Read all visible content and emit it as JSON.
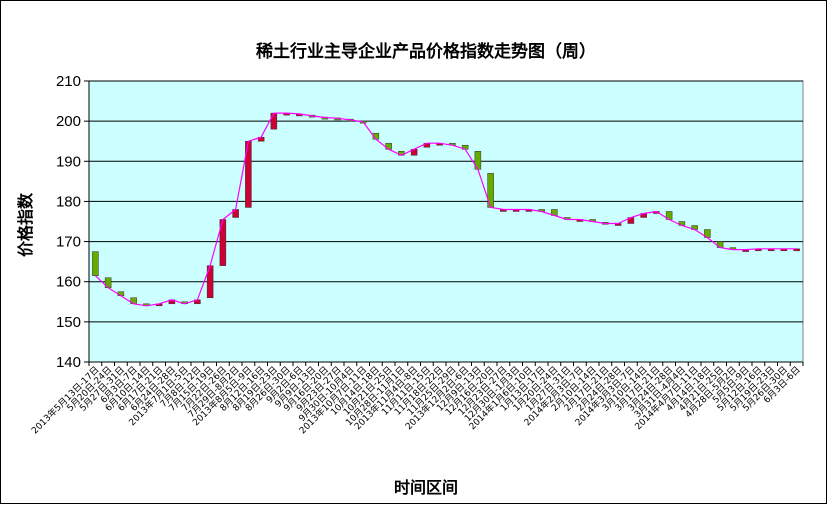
{
  "chart_data": {
    "type": "candlestick-line",
    "title": "稀土行业主导企业产品价格指数走势图（周）",
    "xlabel": "时间区间",
    "ylabel": "价格指数",
    "ylim": [
      140,
      210
    ],
    "yticks": [
      "140",
      "150",
      "160",
      "170",
      "180",
      "190",
      "200",
      "210"
    ],
    "grid": true,
    "plot_background": "#ccffff",
    "line_color": "#ff00ff",
    "up_color": "#cc0033",
    "down_color": "#66aa00",
    "categories": [
      "2013年5月13日-17日",
      "5月20日-24日",
      "5月27日-31日",
      "6月3日-7日",
      "6月10日-14日",
      "6月17日-21日",
      "6月24日-28日",
      "2013年7月1日-5日",
      "7月8日-12日",
      "7月15日-19日",
      "7月22日-26日",
      "7月29日-8月2日",
      "2013年8月5日-9日",
      "8月12日-16日",
      "8月19日-23日",
      "8月26日-30日",
      "9月2日-6日",
      "9月9日-13日",
      "9月16日-20日",
      "9月23日-27日",
      "9月30日-10月4日",
      "2013年10月7日-11日",
      "10月14日-18日",
      "10月21日-25日",
      "10月28日-11月1日",
      "2013年11月4日-8日",
      "11月11日-15日",
      "11月18日-22日",
      "11月25日-29日",
      "2013年12月2日-6日",
      "12月9日-13日",
      "12月16日-20日",
      "12月23日-27日",
      "12月30日-1月3日",
      "2014年1月6日-10日",
      "1月13日-17日",
      "1月20日-24日",
      "1月27日-31日",
      "2014年2月3日-7日",
      "2月10日-14日",
      "2月17日-21日",
      "2月24日-28日",
      "2014年3月3日-7日",
      "3月10日-14日",
      "3月17日-21日",
      "3月24日-28日",
      "3月31日-4月4日",
      "2014年4月7日-11日",
      "4月14日-18日",
      "4月21日-25日",
      "4月28日-5月2日",
      "5月5日-9日",
      "5月12日-16日",
      "5月19日-23日",
      "5月26日-30日",
      "6月3日-6日"
    ],
    "xtick_labels_visible": [
      "2013年5月13日-17日",
      "5月20日-24日",
      "5月27日-31日",
      "6月3日-7日",
      "6月10日-14日",
      "6月17日-21日",
      "6月24日-28日",
      "2013年7月1日-5日",
      "7月8日-12日",
      "7月15日-19日",
      "7月22日-26日",
      "7月29日-8月2日",
      "2013年8月5日-9日",
      "8月12日-16日",
      "8月19日-23日",
      "8月26日-30日",
      "9月2日-6日",
      "9月9日-13日",
      "9月16日-20日",
      "9月23日-27日",
      "9月30日-10月4日",
      "2013年10月7日-11日",
      "10月14日-18日",
      "10月21日-25日",
      "10月28日-11月1日",
      "2013年11月4日-8日",
      "11月11日-15日",
      "11月18日-22日",
      "11月25日-29日",
      "2013年12月2日-6日",
      "12月9日-13日",
      "12月16日-20日",
      "12月23日-27日",
      "12月30日-1月3日",
      "2014年1月6日-10日",
      "1月13日-17日",
      "1月20日-24日",
      "1月27日-31日",
      "2014年2月3日-7日",
      "2月10日-14日",
      "2月17日-21日",
      "2月24日-28日",
      "2014年3月3日-7日",
      "3月10日-14日",
      "3月17日-21日",
      "3月24日-28日",
      "3月31日-4月4日",
      "2014年4月7日-11日",
      "4月14日-18日",
      "4月21日-25日",
      "4月28日-5月2日",
      "5月5日-9日",
      "5月12日-16日",
      "5月19日-23日",
      "5月26日-30日",
      "6月3日-6日"
    ],
    "series": [
      {
        "values": [
          {
            "open": 167.5,
            "close": 161.5
          },
          {
            "open": 161.0,
            "close": 158.5
          },
          {
            "open": 157.5,
            "close": 156.5
          },
          {
            "open": 156.0,
            "close": 154.5
          },
          {
            "open": 154.5,
            "close": 154.0
          },
          {
            "open": 154.0,
            "close": 154.5
          },
          {
            "open": 154.5,
            "close": 155.5
          },
          {
            "open": 155.0,
            "close": 154.5
          },
          {
            "open": 154.5,
            "close": 155.5
          },
          {
            "open": 156.0,
            "close": 164.0
          },
          {
            "open": 164.0,
            "close": 175.5
          },
          {
            "open": 176.0,
            "close": 178.0
          },
          {
            "open": 178.5,
            "close": 195.0
          },
          {
            "open": 195.0,
            "close": 196.0
          },
          {
            "open": 198.0,
            "close": 202.0
          },
          {
            "open": 202.0,
            "close": 202.0
          },
          {
            "open": 201.8,
            "close": 201.8
          },
          {
            "open": 201.5,
            "close": 201.3
          },
          {
            "open": 201.0,
            "close": 200.9
          },
          {
            "open": 200.8,
            "close": 200.7
          },
          {
            "open": 200.5,
            "close": 200.3
          },
          {
            "open": 200.0,
            "close": 199.8
          },
          {
            "open": 197.0,
            "close": 195.5
          },
          {
            "open": 194.5,
            "close": 193.0
          },
          {
            "open": 192.5,
            "close": 191.5
          },
          {
            "open": 191.5,
            "close": 193.0
          },
          {
            "open": 193.5,
            "close": 194.5
          },
          {
            "open": 194.5,
            "close": 194.5
          },
          {
            "open": 194.5,
            "close": 194.0
          },
          {
            "open": 194.0,
            "close": 193.0
          },
          {
            "open": 192.5,
            "close": 188.0
          },
          {
            "open": 187.0,
            "close": 178.5
          },
          {
            "open": 178.0,
            "close": 178.0
          },
          {
            "open": 178.0,
            "close": 178.0
          },
          {
            "open": 178.0,
            "close": 178.0
          },
          {
            "open": 178.0,
            "close": 177.5
          },
          {
            "open": 178.0,
            "close": 176.5
          },
          {
            "open": 176.0,
            "close": 175.5
          },
          {
            "open": 175.5,
            "close": 175.5
          },
          {
            "open": 175.5,
            "close": 175.0
          },
          {
            "open": 174.8,
            "close": 174.5
          },
          {
            "open": 174.5,
            "close": 174.5
          },
          {
            "open": 174.5,
            "close": 176.0
          },
          {
            "open": 176.0,
            "close": 177.0
          },
          {
            "open": 177.0,
            "close": 177.5
          },
          {
            "open": 177.5,
            "close": 175.5
          },
          {
            "open": 175.0,
            "close": 174.0
          },
          {
            "open": 174.0,
            "close": 173.0
          },
          {
            "open": 173.0,
            "close": 171.0
          },
          {
            "open": 170.0,
            "close": 168.5
          },
          {
            "open": 168.5,
            "close": 168.0
          },
          {
            "open": 168.0,
            "close": 168.0
          },
          {
            "open": 168.0,
            "close": 168.2
          },
          {
            "open": 168.2,
            "close": 168.2
          },
          {
            "open": 168.2,
            "close": 168.2
          },
          {
            "open": 168.2,
            "close": 168.2
          }
        ]
      }
    ]
  }
}
